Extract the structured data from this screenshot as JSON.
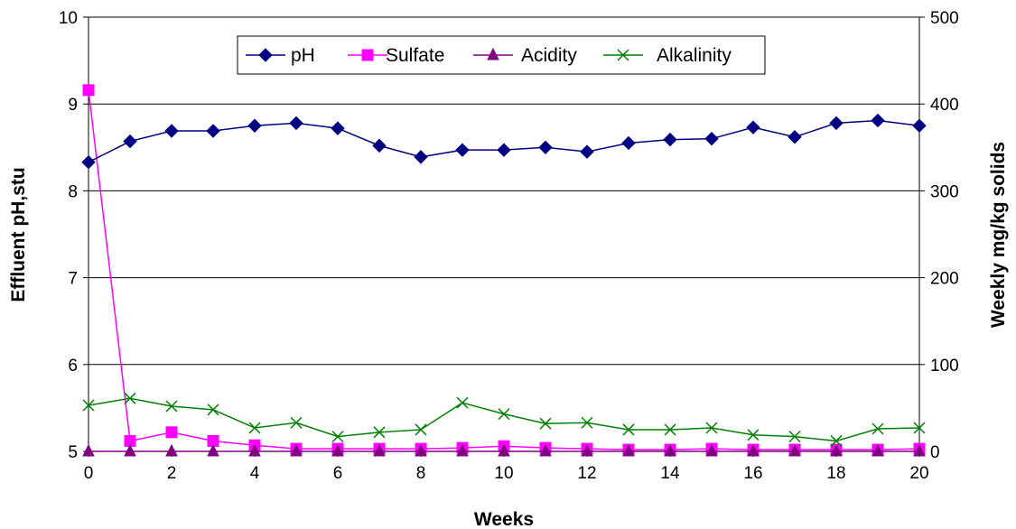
{
  "chart_data": {
    "type": "line",
    "title": "",
    "xlabel": "Weeks",
    "ylabel_left": "Effluent pH,stu",
    "ylabel_right": "Weekly mg/kg solids",
    "xlim": [
      0,
      20
    ],
    "ylim_left": [
      5,
      10
    ],
    "ylim_right": [
      0,
      500
    ],
    "x_ticks": [
      "0",
      "2",
      "4",
      "6",
      "8",
      "10",
      "12",
      "14",
      "16",
      "18",
      "20"
    ],
    "y_left_ticks": [
      "5",
      "6",
      "7",
      "8",
      "9",
      "10"
    ],
    "y_right_ticks": [
      "0",
      "100",
      "200",
      "300",
      "400",
      "500"
    ],
    "grid": true,
    "legend_position": "top-center",
    "x": [
      0,
      1,
      2,
      3,
      4,
      5,
      6,
      7,
      8,
      9,
      10,
      11,
      12,
      13,
      14,
      15,
      16,
      17,
      18,
      19,
      20
    ],
    "series": [
      {
        "name": "pH",
        "axis": "left",
        "color": "#000080",
        "marker": "diamond",
        "values": [
          8.33,
          8.57,
          8.69,
          8.69,
          8.75,
          8.78,
          8.72,
          8.52,
          8.39,
          8.47,
          8.47,
          8.5,
          8.45,
          8.55,
          8.59,
          8.6,
          8.73,
          8.62,
          8.78,
          8.81,
          8.75
        ]
      },
      {
        "name": "Sulfate",
        "axis": "right",
        "color": "#FF00FF",
        "marker": "square",
        "values": [
          416,
          12,
          22,
          12,
          7,
          3,
          3,
          3,
          3,
          4,
          6,
          4,
          3,
          2,
          2,
          3,
          2,
          2,
          2,
          2,
          3
        ]
      },
      {
        "name": "Acidity",
        "axis": "right",
        "color": "#800080",
        "marker": "triangle",
        "values": [
          0,
          0,
          0,
          0,
          0,
          0,
          0,
          0,
          0,
          0,
          0,
          0,
          0,
          0,
          0,
          0,
          0,
          0,
          0,
          0,
          0
        ]
      },
      {
        "name": "Alkalinity",
        "axis": "right",
        "color": "#008000",
        "marker": "x",
        "values": [
          53,
          61,
          52,
          48,
          27,
          33,
          17,
          22,
          25,
          56,
          43,
          32,
          33,
          25,
          25,
          27,
          19,
          17,
          12,
          26,
          27
        ]
      }
    ]
  }
}
